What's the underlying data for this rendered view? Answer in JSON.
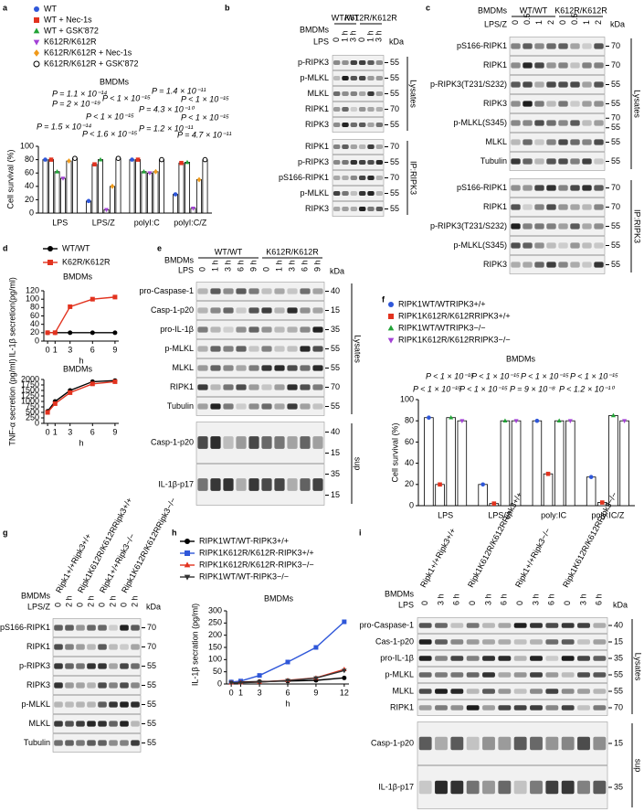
{
  "panels": [
    {
      "letter": "b",
      "header": [
        "BMDMs",
        "LPS"
      ],
      "unit": "kDa",
      "groups": [
        "WT/WT",
        "K612R/K612R"
      ],
      "lanes": [
        "0",
        "1 h",
        "3 h",
        "0",
        "1 h",
        "3 h"
      ],
      "sections": [
        {
          "name": "Lysates",
          "rows": [
            {
              "label": "p-RIPK3",
              "kda": [
                55
              ]
            },
            {
              "label": "p-MLKL",
              "kda": [
                55
              ]
            },
            {
              "label": "MLKL",
              "kda": [
                55
              ]
            },
            {
              "label": "RIPK1",
              "kda": [
                70
              ]
            },
            {
              "label": "RIPK3",
              "kda": [
                55
              ]
            }
          ]
        },
        {
          "name": "IP:RIPK3",
          "rows": [
            {
              "label": "RIPK1",
              "kda": [
                70
              ]
            },
            {
              "label": "p-RIPK3",
              "kda": [
                55
              ]
            },
            {
              "label": "pS166-RIPK1",
              "kda": [
                70
              ]
            },
            {
              "label": "p-MLKL",
              "kda": [
                55
              ]
            },
            {
              "label": "RIPK3",
              "kda": [
                55
              ]
            }
          ]
        }
      ]
    },
    {
      "letter": "c",
      "header": [
        "BMDMs",
        "LPS/Z"
      ],
      "unit": "kDa",
      "groups": [
        "WT/WT",
        "K612R/K612R"
      ],
      "lanes": [
        "0",
        "0.5",
        "1",
        "2",
        "0",
        "0.5",
        "1",
        "2"
      ],
      "sections": [
        {
          "name": "Lysates",
          "rows": [
            {
              "label": "pS166-RIPK1",
              "kda": [
                70
              ]
            },
            {
              "label": "RIPK1",
              "kda": [
                70
              ]
            },
            {
              "label": "p-RIPK3(T231/S232)",
              "kda": [
                55
              ]
            },
            {
              "label": "RIPK3",
              "kda": [
                55
              ]
            },
            {
              "label": "p-MLKL(S345)",
              "kda": [
                70,
                55
              ]
            },
            {
              "label": "MLKL",
              "kda": [
                55
              ]
            },
            {
              "label": "Tubulin",
              "kda": [
                55
              ]
            }
          ]
        },
        {
          "name": "IP:RIPK3",
          "rows": [
            {
              "label": "pS166-RIPK1",
              "kda": [
                70
              ]
            },
            {
              "label": "RIPK1",
              "kda": [
                70
              ]
            },
            {
              "label": "p-RIPK3(T231/S232)",
              "kda": [
                55
              ]
            },
            {
              "label": "p-MLKL(S345)",
              "kda": [
                55
              ]
            },
            {
              "label": "RIPK3",
              "kda": [
                55
              ]
            }
          ]
        }
      ]
    },
    {
      "letter": "e",
      "header": [
        "BMDMs",
        "LPS"
      ],
      "unit": "kDa",
      "groups": [
        "WT/WT",
        "K612R/K612R"
      ],
      "lanes": [
        "0",
        "1 h",
        "3 h",
        "6 h",
        "9 h",
        "0",
        "1 h",
        "3 h",
        "6 h",
        "9 h"
      ],
      "sections": [
        {
          "name": "Lysates",
          "rows": [
            {
              "label": "pro-Caspase-1",
              "kda": [
                40
              ]
            },
            {
              "label": "Casp-1-p20",
              "kda": [
                15
              ]
            },
            {
              "label": "pro-IL-1β",
              "kda": [
                35
              ]
            },
            {
              "label": "p-MLKL",
              "kda": [
                55
              ]
            },
            {
              "label": "MLKL",
              "kda": [
                55
              ]
            },
            {
              "label": "RIPK1",
              "kda": [
                70
              ]
            },
            {
              "label": "Tubulin",
              "kda": [
                55
              ]
            }
          ]
        },
        {
          "name": "sup",
          "rows": [
            {
              "label": "Casp-1-p20",
              "kda": [
                40,
                15
              ]
            },
            {
              "label": "IL-1β-p17",
              "kda": [
                35,
                15
              ]
            }
          ]
        }
      ]
    },
    {
      "letter": "g",
      "header": [
        "BMDMs",
        "LPS/Z"
      ],
      "unit": "kDa",
      "groups": [
        "Ripk1+/+Ripk3+/+",
        "Ripk1K612R/K612RRipk3+/+",
        "Ripk1+/+Ripk3−/−",
        "Ripk1K612R/K612RRipk3−/−"
      ],
      "lanes": [
        "0",
        "2 h",
        "0",
        "2 h",
        "0",
        "2 h",
        "0",
        "2 h"
      ],
      "sections": [
        {
          "rows": [
            {
              "label": "pS166-RIPK1",
              "kda": [
                70
              ]
            },
            {
              "label": "RIPK1",
              "kda": [
                70
              ]
            },
            {
              "label": "p-RIPK3",
              "kda": [
                55
              ]
            },
            {
              "label": "RIPK3",
              "kda": [
                55
              ]
            },
            {
              "label": "p-MLKL",
              "kda": [
                55
              ]
            },
            {
              "label": "MLKL",
              "kda": [
                55
              ]
            },
            {
              "label": "Tubulin",
              "kda": [
                55
              ]
            }
          ]
        }
      ]
    },
    {
      "letter": "i",
      "header": [
        "BMDMs",
        "LPS"
      ],
      "unit": "kDa",
      "groups": [
        "Ripk1+/+Ripk3+/+",
        "Ripk1K612R/K612RRipk3+/+",
        "Ripk1+/+Ripk3−/−",
        "Ripk1K612R/K612RRipk3−/−"
      ],
      "lanes": [
        "0",
        "3 h",
        "6 h",
        "0",
        "3 h",
        "6 h",
        "0",
        "3 h",
        "6 h",
        "0",
        "3 h",
        "6 h"
      ],
      "sections": [
        {
          "name": "Lysates",
          "rows": [
            {
              "label": "pro-Caspase-1",
              "kda": [
                40
              ]
            },
            {
              "label": "Cas-1-p20",
              "kda": [
                15
              ]
            },
            {
              "label": "pro-IL-1β",
              "kda": [
                35
              ]
            },
            {
              "label": "p-MLKL",
              "kda": [
                55
              ]
            },
            {
              "label": "MLKL",
              "kda": [
                55
              ]
            },
            {
              "label": "RIPK1",
              "kda": [
                70
              ]
            }
          ]
        },
        {
          "name": "sup",
          "rows": [
            {
              "label": "Casp-1-p20",
              "kda": [
                15
              ]
            },
            {
              "label": "IL-1β-p17",
              "kda": [
                35
              ]
            }
          ]
        }
      ]
    }
  ],
  "chart_data": [
    {
      "type": "bar",
      "panel": "a",
      "title": "BMDMs",
      "ylabel": "Cell survival (%)",
      "categories": [
        "LPS",
        "LPS/Z",
        "polyI:C",
        "polyI:C/Z"
      ],
      "ylim": [
        0,
        100
      ],
      "yticks": [
        0,
        20,
        40,
        60,
        80,
        100
      ],
      "series": [
        {
          "name": "WT",
          "color": "#2f57d9",
          "marker": "circle",
          "values": [
            80,
            18,
            80,
            28
          ]
        },
        {
          "name": "WT + Nec-1s",
          "color": "#e2331f",
          "marker": "square",
          "values": [
            80,
            73,
            80,
            75
          ]
        },
        {
          "name": "WT + GSK'872",
          "color": "#21a336",
          "marker": "triangle",
          "values": [
            62,
            80,
            62,
            76
          ]
        },
        {
          "name": "K612R/K612R",
          "color": "#a341d6",
          "marker": "triangle-down",
          "values": [
            52,
            5,
            60,
            7
          ]
        },
        {
          "name": "K612R/K612R + Nec-1s",
          "color": "#f09a1a",
          "marker": "diamond",
          "values": [
            78,
            40,
            62,
            50
          ]
        },
        {
          "name": "K612R/K612R + GSK'872",
          "color": "#000000",
          "marker": "open-circle",
          "values": [
            82,
            82,
            80,
            80
          ]
        }
      ],
      "annotations": [
        "P = 1.1 × 10⁻¹⁴",
        "P = 2 × 10⁻¹⁹",
        "P = 1.5 × 10⁻¹⁴",
        "P < 1 × 10⁻¹⁵",
        "P < 1 × 10⁻¹⁵",
        "P < 1.6 × 10⁻¹⁵",
        "P = 1.4 × 10⁻¹¹",
        "P = 4.3 × 10⁻¹⁰",
        "P = 1.2 × 10⁻¹¹",
        "P < 1 × 10⁻¹⁵",
        "P < 1 × 10⁻¹⁵",
        "P = 4.7 × 10⁻¹¹"
      ]
    },
    {
      "type": "line",
      "panel": "d",
      "title": "BMDMs",
      "ylabel": "IL-1β secretion(pg/ml)",
      "xlabel": "h",
      "x": [
        0,
        1,
        3,
        6,
        9
      ],
      "xlim": [
        -0.5,
        9.5
      ],
      "xticks": [
        0,
        1,
        3,
        6,
        9
      ],
      "ylim": [
        0,
        120
      ],
      "yticks": [
        0,
        20,
        40,
        60,
        80,
        100,
        120
      ],
      "series": [
        {
          "name": "WT/WT",
          "color": "#000000",
          "marker": "circle",
          "values": [
            20,
            20,
            20,
            20,
            20
          ]
        },
        {
          "name": "K62R/K612R",
          "color": "#e2331f",
          "marker": "square",
          "values": [
            20,
            20,
            82,
            100,
            105
          ]
        }
      ]
    },
    {
      "type": "line",
      "title": "BMDMs",
      "ylabel": "TNF-α secretion (pg/ml)",
      "xlabel": "h",
      "x": [
        0,
        1,
        3,
        6,
        9
      ],
      "xlim": [
        -0.5,
        9.5
      ],
      "xticks": [
        0,
        1,
        3,
        6,
        9
      ],
      "ylim": [
        0,
        2000
      ],
      "yticks": [
        0,
        250,
        500,
        750,
        1000,
        1250,
        1500,
        1750,
        2000
      ],
      "series": [
        {
          "color": "#000000",
          "marker": "circle",
          "values": [
            550,
            1000,
            1500,
            1900,
            1950
          ]
        },
        {
          "color": "#e2331f",
          "marker": "square",
          "values": [
            500,
            900,
            1400,
            1800,
            1900
          ]
        }
      ]
    },
    {
      "type": "bar",
      "panel": "f",
      "title": "BMDMs",
      "ylabel": "Cell survival (%)",
      "categories": [
        "LPS",
        "LPS/Z",
        "poly:IC",
        "poly:IC/Z"
      ],
      "ylim": [
        0,
        100
      ],
      "yticks": [
        0,
        20,
        40,
        60,
        80,
        100
      ],
      "series": [
        {
          "name": "RIPK1WT/WTRIPK3+/+",
          "color": "#2f57d9",
          "marker": "circle",
          "values": [
            83,
            20,
            80,
            27
          ]
        },
        {
          "name": "RIPK1K612R/K612RRIPK3+/+",
          "color": "#e2331f",
          "marker": "square",
          "values": [
            20,
            2,
            30,
            3
          ]
        },
        {
          "name": "RIPK1WT/WTRIPK3−/−",
          "color": "#21a336",
          "marker": "triangle",
          "values": [
            83,
            80,
            80,
            85
          ]
        },
        {
          "name": "RIPK1K612R/K612RRIPK3−/−",
          "color": "#a341d6",
          "marker": "triangle-down",
          "values": [
            80,
            80,
            80,
            80
          ]
        }
      ],
      "annotations": [
        "P < 1 × 10⁻¹⁵",
        "P < 1 × 10⁻¹⁵",
        "P < 1 × 10⁻¹⁵",
        "P < 1 × 10⁻¹⁵",
        "P < 1 × 10⁻¹⁵",
        "P = 9 × 10⁻⁸",
        "P < 1 × 10⁻¹⁵",
        "P < 1.2 × 10⁻¹⁰"
      ]
    },
    {
      "type": "line",
      "panel": "h",
      "title": "BMDMs",
      "ylabel": "IL-1β secration (pg/ml)",
      "xlabel": "h",
      "x": [
        0,
        1,
        3,
        6,
        9,
        12
      ],
      "xlim": [
        -0.5,
        12.5
      ],
      "xticks": [
        0,
        1,
        3,
        6,
        9,
        12
      ],
      "ylim": [
        0,
        300
      ],
      "yticks": [
        0,
        50,
        100,
        150,
        200,
        250,
        300
      ],
      "series": [
        {
          "name": "RIPK1WT/WT-RIPK3+/+",
          "color": "#000000",
          "marker": "circle",
          "values": [
            8,
            8,
            10,
            12,
            15,
            25
          ]
        },
        {
          "name": "RIPK1K612R/K612R-RIPK3+/+",
          "color": "#2f57d9",
          "marker": "square",
          "values": [
            8,
            12,
            35,
            90,
            150,
            255
          ]
        },
        {
          "name": "RIPK1K612R/K612R-RIPK3−/−",
          "color": "#e2331f",
          "marker": "triangle",
          "values": [
            5,
            6,
            8,
            15,
            25,
            60
          ]
        },
        {
          "name": "RIPK1WT/WT-RIPK3−/−",
          "color": "#333333",
          "marker": "triangle-down",
          "values": [
            5,
            5,
            8,
            14,
            24,
            55
          ]
        }
      ]
    }
  ]
}
